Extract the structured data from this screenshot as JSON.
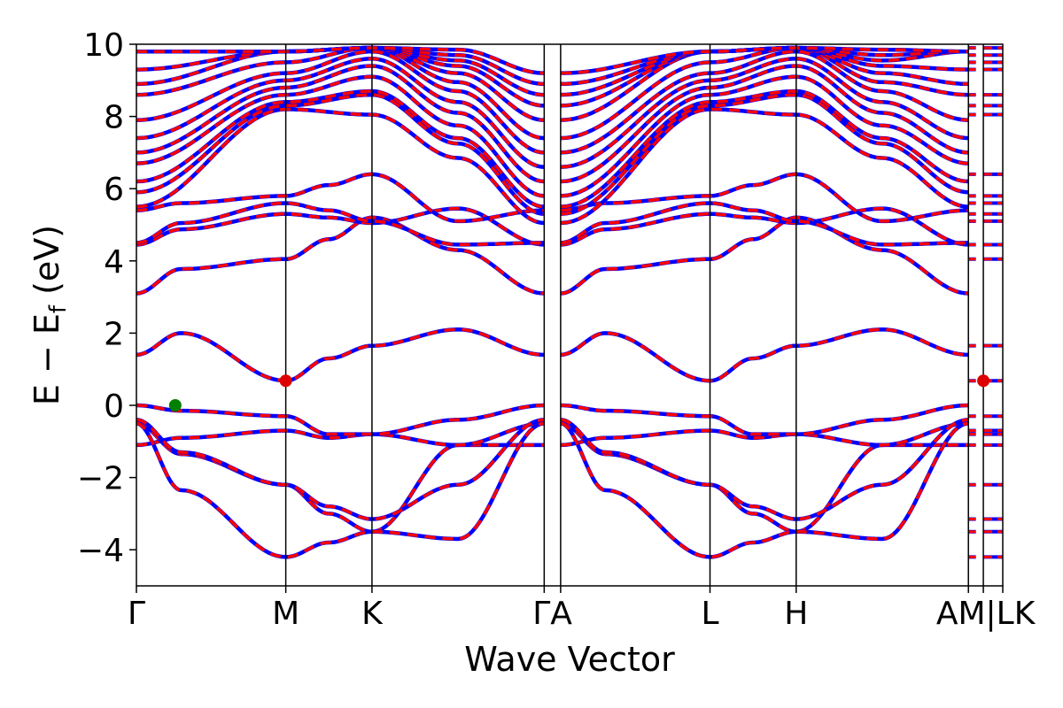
{
  "chart_data": {
    "type": "line",
    "xlabel": "Wave Vector",
    "ylabel": "E − E",
    "ylabel_sub": "f",
    "ylabel_unit": " (eV)",
    "ylim": [
      -5,
      10
    ],
    "yticks": [
      -4,
      -2,
      0,
      2,
      4,
      6,
      8,
      10
    ],
    "ytick_labels": [
      "−4",
      "−2",
      "0",
      "2",
      "4",
      "6",
      "8",
      "10"
    ],
    "xlim": [
      0,
      5.8
    ],
    "kpoints": [
      {
        "label": "Γ",
        "x": 0.0
      },
      {
        "label": "M",
        "x": 1.0
      },
      {
        "label": "K",
        "x": 1.577
      },
      {
        "label": "Γ",
        "x": 2.73
      },
      {
        "label": "A",
        "x": 2.84
      },
      {
        "label": "L",
        "x": 3.84
      },
      {
        "label": "H",
        "x": 4.417
      },
      {
        "label": "A",
        "x": 5.57
      },
      {
        "label": "L",
        "x": 5.67
      },
      {
        "label": "M",
        "x": 5.57
      },
      {
        "label": "|",
        "x": 5.62
      },
      {
        "label": "H",
        "x": 5.67
      },
      {
        "label": "K",
        "x": 5.8
      }
    ],
    "tick_label_display": [
      {
        "text": "Γ",
        "x": 0.0
      },
      {
        "text": "M",
        "x": 1.0
      },
      {
        "text": "K",
        "x": 1.577
      },
      {
        "text": "ΓA",
        "x": 2.785
      },
      {
        "text": "L",
        "x": 3.84
      },
      {
        "text": "H",
        "x": 4.417
      },
      {
        "text": "AM|LK",
        "x": 5.685
      }
    ],
    "vlines": [
      1.0,
      1.577,
      2.73,
      2.84,
      3.84,
      4.417,
      5.57,
      5.67
    ],
    "segments": [
      {
        "from": "Γ",
        "to": "M",
        "x0": 0.0,
        "x1": 1.0
      },
      {
        "from": "M",
        "to": "K",
        "x0": 1.0,
        "x1": 1.577
      },
      {
        "from": "K",
        "to": "Γ",
        "x0": 1.577,
        "x1": 2.73
      },
      {
        "from": "A",
        "to": "L",
        "x0": 2.84,
        "x1": 3.84
      },
      {
        "from": "L",
        "to": "H",
        "x0": 3.84,
        "x1": 4.417
      },
      {
        "from": "H",
        "to": "A",
        "x0": 4.417,
        "x1": 5.57
      }
    ],
    "bands_low": [
      {
        "Gamma": -1.1,
        "M": -0.7,
        "K": -0.8,
        "Mid_MK": -0.9,
        "Mid_KG": -1.1
      },
      {
        "Gamma": -0.5,
        "M": -2.2,
        "K": -3.5,
        "Mid_MK": -3.0,
        "Mid_KG": -1.1
      },
      {
        "Gamma": -0.5,
        "M": -4.2,
        "K": -3.5,
        "Mid_MK": -3.8,
        "Mid_KG": -3.7
      },
      {
        "Gamma": -0.4,
        "M": -2.2,
        "K": -3.15,
        "Mid_MK": -2.8,
        "Mid_KG": -2.2
      },
      {
        "Gamma": -0.0,
        "M": -0.3,
        "K": -0.8,
        "Mid_MK": -0.8,
        "Mid_KG": -0.4
      },
      {
        "Gamma": 1.4,
        "M": 0.68,
        "K": 1.65,
        "Mid_MK": 1.3,
        "Mid_KG": 2.1
      },
      {
        "Gamma": 3.1,
        "M": 4.05,
        "K": 5.2,
        "Mid_MK": 4.6,
        "Mid_KG": 4.3
      },
      {
        "Gamma": 4.45,
        "M": 5.3,
        "K": 5.05,
        "Mid_MK": 5.2,
        "Mid_KG": 5.45
      },
      {
        "Gamma": 4.5,
        "M": 5.6,
        "K": 5.1,
        "Mid_MK": 5.4,
        "Mid_KG": 4.45
      },
      {
        "Gamma": 5.4,
        "M": 5.8,
        "K": 6.4,
        "Mid_MK": 6.1,
        "Mid_KG": 5.1
      }
    ],
    "bands_high_gamma": [
      5.5,
      5.9,
      6.2,
      6.7,
      7.0,
      7.4,
      7.9,
      8.6,
      8.9,
      9.3,
      9.8
    ],
    "bands_high_M": [
      8.2,
      8.3,
      8.4,
      8.6,
      8.8,
      9.0,
      9.2,
      9.5,
      9.8
    ],
    "bands_high_K": [
      8.05,
      8.6,
      8.7,
      9.1,
      9.4,
      9.6,
      9.8,
      9.9
    ],
    "bands_high_G2": [
      5.05,
      5.3,
      5.5,
      5.8,
      6.2,
      6.6,
      7.0,
      7.4,
      7.9,
      8.3,
      8.6,
      8.9,
      9.2
    ],
    "series": [
      {
        "color": "#0000ff",
        "style": "solid"
      },
      {
        "color": "#ff0000",
        "style": "dashed"
      }
    ],
    "markers": [
      {
        "x": 0.26,
        "y": 0.0,
        "color": "#008000"
      },
      {
        "x": 1.0,
        "y": 0.68,
        "color": "#dd0000"
      },
      {
        "x": 5.67,
        "y": 0.68,
        "color": "#dd0000"
      }
    ],
    "grid": false,
    "legend": "none"
  }
}
